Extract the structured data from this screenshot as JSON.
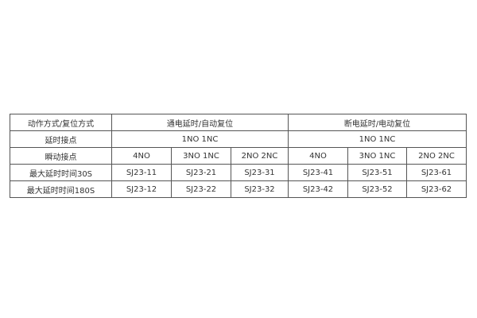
{
  "table": {
    "row_action": {
      "label": "动作方式/复位方式",
      "groups": [
        "通电延时/自动复位",
        "断电延时/电动复位"
      ]
    },
    "row_delay_contact": {
      "label": "延时接点",
      "values": [
        "1NO 1NC",
        "1NO 1NC"
      ]
    },
    "row_instant_contact": {
      "label": "瞬动接点",
      "values": [
        "4NO",
        "3NO 1NC",
        "2NO 2NC",
        "4NO",
        "3NO 1NC",
        "2NO 2NC"
      ]
    },
    "row_30s": {
      "label": "最大延时时间30S",
      "values": [
        "SJ23-11",
        "SJ23-21",
        "SJ23-31",
        "SJ23-41",
        "SJ23-51",
        "SJ23-61"
      ]
    },
    "row_180s": {
      "label": "最大延时时间180S",
      "values": [
        "SJ23-12",
        "SJ23-22",
        "SJ23-32",
        "SJ23-42",
        "SJ23-52",
        "SJ23-62"
      ]
    }
  }
}
